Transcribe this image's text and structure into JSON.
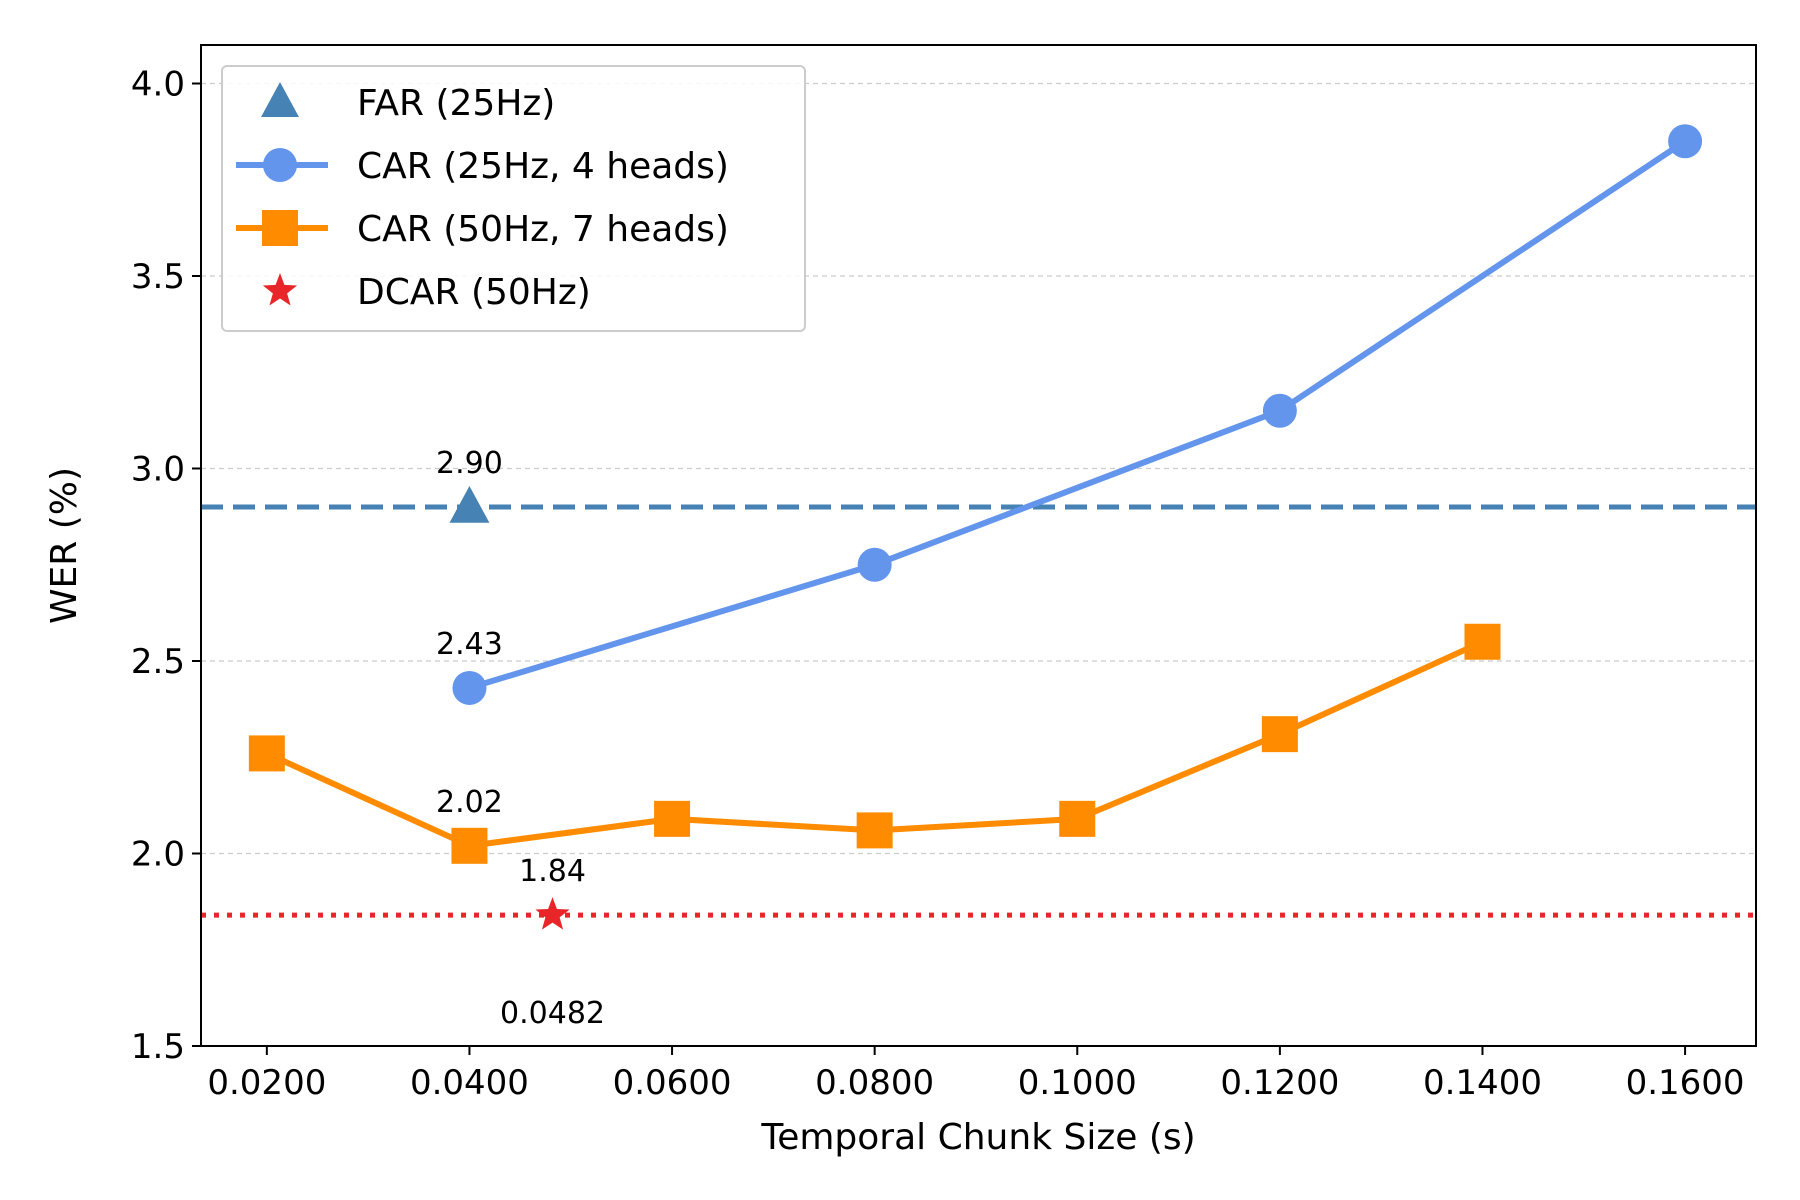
{
  "chart_data": {
    "type": "line",
    "xlabel": "Temporal Chunk Size (s)",
    "ylabel": "WER (%)",
    "xlim": [
      0.0135,
      0.167
    ],
    "ylim": [
      1.5,
      4.1
    ],
    "xticks": [
      0.02,
      0.04,
      0.06,
      0.08,
      0.1,
      0.12,
      0.14,
      0.16
    ],
    "xtick_labels": [
      "0.0200",
      "0.0400",
      "0.0600",
      "0.0800",
      "0.1000",
      "0.1200",
      "0.1400",
      "0.1600"
    ],
    "yticks": [
      1.5,
      2.0,
      2.5,
      3.0,
      3.5,
      4.0
    ],
    "ytick_labels": [
      "1.5",
      "2.0",
      "2.5",
      "3.0",
      "3.5",
      "4.0"
    ],
    "grid": "y-dashed",
    "legend_position": "top-left",
    "series": [
      {
        "name": "FAR (25Hz)",
        "kind": "marker",
        "marker": "triangle",
        "color": "#4682B4",
        "x": [
          0.04
        ],
        "y": [
          2.9
        ],
        "reference_line": {
          "y": 2.9,
          "style": "dashed"
        }
      },
      {
        "name": "CAR (25Hz, 4 heads)",
        "kind": "line",
        "marker": "circle",
        "color": "#6495ED",
        "x": [
          0.04,
          0.08,
          0.12,
          0.16
        ],
        "y": [
          2.43,
          2.75,
          3.15,
          3.85
        ]
      },
      {
        "name": "CAR (50Hz, 7 heads)",
        "kind": "line",
        "marker": "square",
        "color": "#FF8C00",
        "x": [
          0.02,
          0.04,
          0.06,
          0.08,
          0.1,
          0.12,
          0.14
        ],
        "y": [
          2.26,
          2.02,
          2.09,
          2.06,
          2.09,
          2.31,
          2.55
        ]
      },
      {
        "name": "DCAR (50Hz)",
        "kind": "marker",
        "marker": "star",
        "color": "#E8262A",
        "x": [
          0.0482
        ],
        "y": [
          1.84
        ],
        "reference_line": {
          "y": 1.84,
          "style": "dotted"
        }
      }
    ],
    "annotations": [
      {
        "text": "2.90",
        "x": 0.04,
        "y": 2.9,
        "anchor": "above"
      },
      {
        "text": "2.43",
        "x": 0.04,
        "y": 2.43,
        "anchor": "above"
      },
      {
        "text": "2.02",
        "x": 0.04,
        "y": 2.02,
        "anchor": "above"
      },
      {
        "text": "1.84",
        "x": 0.0482,
        "y": 1.84,
        "anchor": "above"
      },
      {
        "text": "0.0482",
        "x": 0.0482,
        "y": 1.84,
        "anchor": "below-axis"
      }
    ]
  }
}
